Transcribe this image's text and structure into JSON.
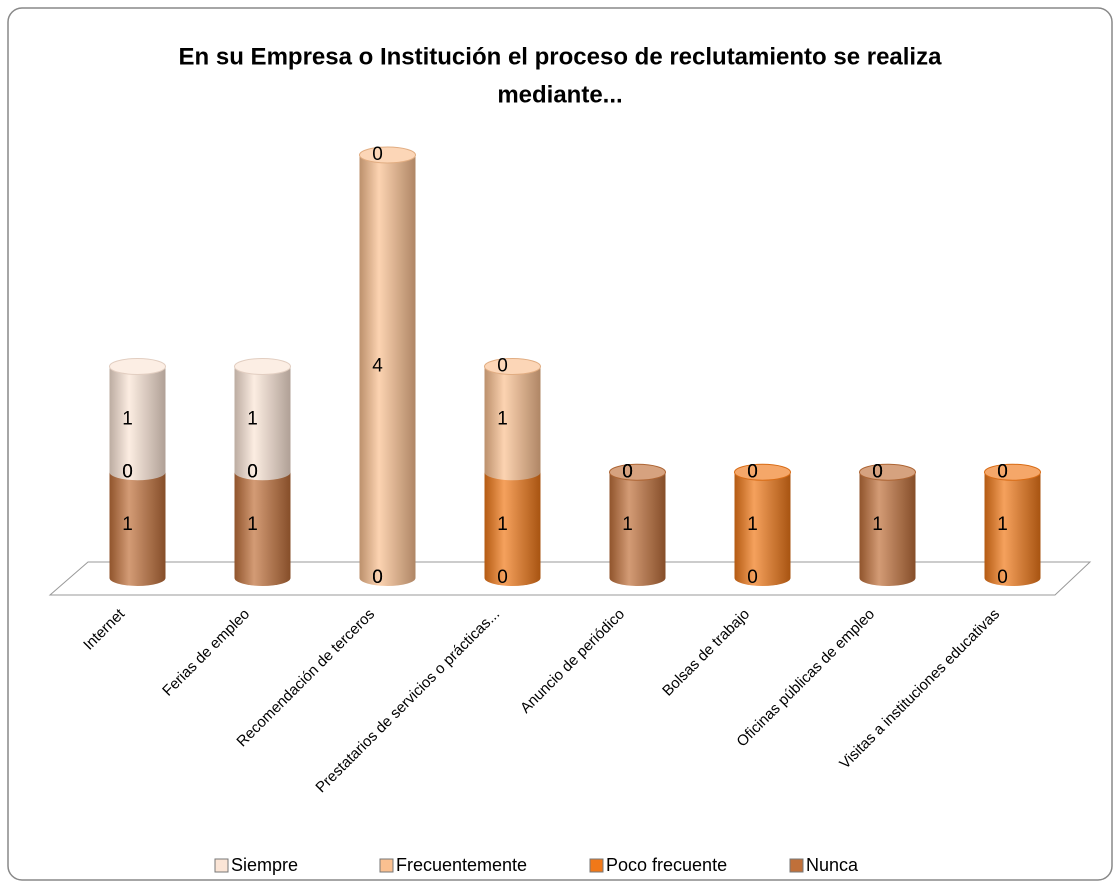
{
  "chart_data": {
    "type": "bar3d_stacked",
    "title": [
      "En su Empresa o Institución el proceso de reclutamiento se realiza",
      "mediante..."
    ],
    "categories": [
      "Internet",
      "Ferias de empleo",
      "Recomendación de terceros",
      "Prestatarios de servicios o prácticas...",
      "Anuncio de periódico",
      "Bolsas de trabajo",
      "Oficinas públicas de empleo",
      "Visitas a instituciones educativas"
    ],
    "series": [
      {
        "name": "Siempre",
        "color": "#fbe5d6",
        "values": [
          1,
          1,
          0,
          0,
          0,
          0,
          0,
          0
        ]
      },
      {
        "name": "Frecuentemente",
        "color": "#fac090",
        "values": [
          0,
          0,
          4,
          1,
          0,
          0,
          0,
          0
        ]
      },
      {
        "name": "Poco frecuente",
        "color": "#f07818",
        "values": [
          0,
          0,
          0,
          1,
          0,
          1,
          0,
          1
        ]
      },
      {
        "name": "Nunca",
        "color": "#c0703a",
        "values": [
          1,
          1,
          0,
          0,
          1,
          0,
          1,
          0
        ]
      }
    ],
    "legend": "bottom"
  }
}
